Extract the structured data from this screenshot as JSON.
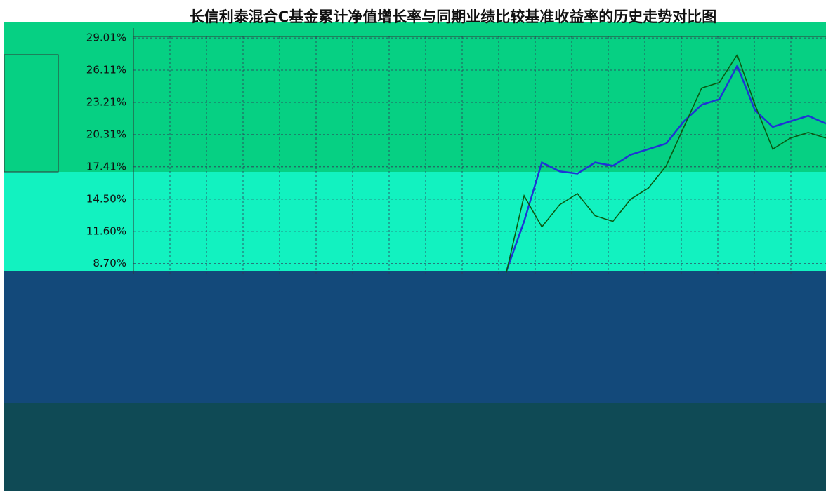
{
  "chart_data": {
    "type": "line",
    "title": "长信利泰混合C基金累计净值增长率与同期业绩比较基准收益率的历史走势对比图",
    "categories": [
      null,
      null,
      null,
      null,
      null,
      null,
      null,
      null,
      null,
      null,
      null,
      null,
      null,
      null,
      null,
      null,
      null,
      null,
      null,
      null,
      null,
      null,
      null,
      null,
      null,
      null,
      null,
      null,
      null,
      null,
      null,
      null,
      null,
      null,
      null,
      null,
      null,
      null,
      null,
      null
    ],
    "series": [
      {
        "color": "#1f33d6",
        "values": [
          null,
          null,
          null,
          null,
          null,
          null,
          null,
          null,
          null,
          null,
          null,
          null,
          null,
          null,
          null,
          null,
          null,
          null,
          null,
          null,
          null,
          8.0,
          12.5,
          17.8,
          17.0,
          16.8,
          17.8,
          17.5,
          18.5,
          19.0,
          19.5,
          21.5,
          23.0,
          23.5,
          26.5,
          22.5,
          21.0,
          21.5,
          22.0,
          21.3
        ]
      },
      {
        "color": "#0a5a12",
        "values": [
          null,
          null,
          null,
          null,
          null,
          null,
          null,
          null,
          null,
          null,
          null,
          null,
          null,
          null,
          null,
          null,
          null,
          null,
          null,
          null,
          null,
          7.9,
          14.8,
          12.0,
          14.0,
          15.0,
          13.0,
          12.5,
          14.5,
          15.5,
          17.5,
          21.0,
          24.5,
          25.0,
          27.5,
          23.0,
          19.0,
          20.0,
          20.5,
          20.0
        ]
      }
    ],
    "ylim": [
      7.8,
      29.9
    ],
    "yticks": [
      {
        "value": 8.7,
        "label": "8.70%"
      },
      {
        "value": 11.6,
        "label": "11.60%"
      },
      {
        "value": 14.5,
        "label": "14.50%"
      },
      {
        "value": 17.41,
        "label": "17.41%"
      },
      {
        "value": 20.31,
        "label": "20.31%"
      },
      {
        "value": 23.21,
        "label": "23.21%"
      },
      {
        "value": 26.11,
        "label": "26.11%"
      },
      {
        "value": 29.01,
        "label": "29.01%"
      }
    ],
    "grid": true
  }
}
